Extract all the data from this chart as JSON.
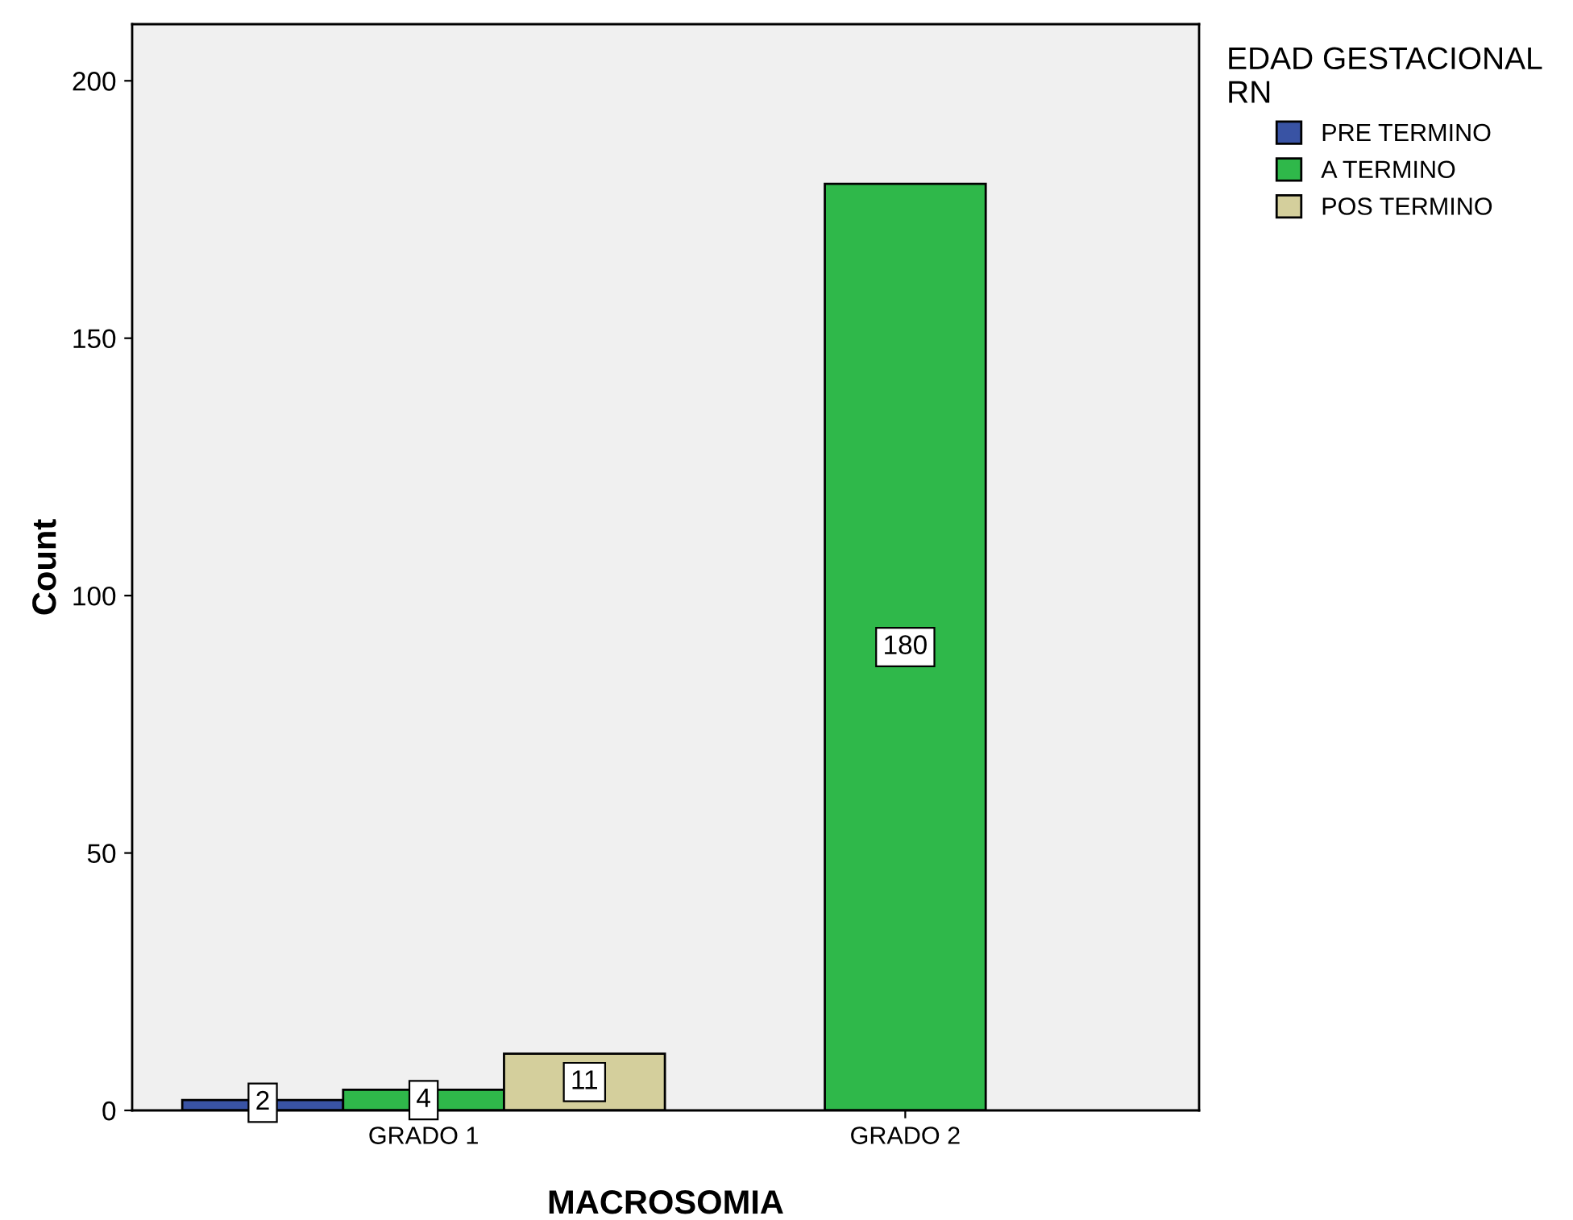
{
  "chart_data": {
    "type": "bar",
    "xlabel": "MACROSOMIA",
    "ylabel": "Count",
    "legend_title": "EDAD GESTACIONAL\nRN",
    "categories": [
      "GRADO 1",
      "GRADO 2"
    ],
    "series": [
      {
        "name": "PRE TERMINO",
        "color": "#3953a4",
        "values": [
          2,
          null
        ]
      },
      {
        "name": "A TERMINO",
        "color": "#2fb84a",
        "values": [
          4,
          180
        ]
      },
      {
        "name": "POS TERMINO",
        "color": "#d4cf9c",
        "values": [
          11,
          null
        ]
      }
    ],
    "ylim": [
      0,
      211
    ],
    "yticks": [
      0,
      50,
      100,
      150,
      200
    ],
    "grid": false,
    "legend": "right",
    "data_labels": true
  }
}
